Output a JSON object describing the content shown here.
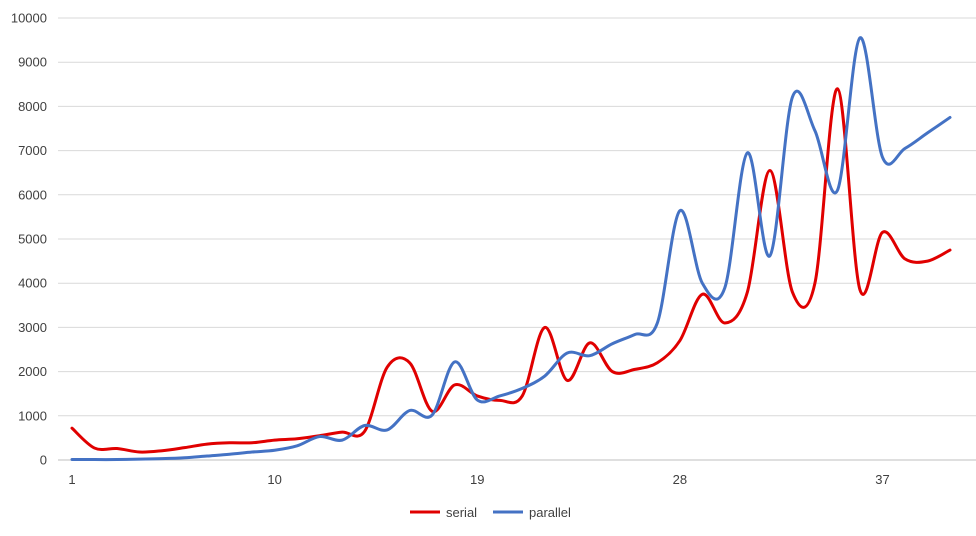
{
  "chart_data": {
    "type": "line",
    "title": "",
    "xlabel": "",
    "ylabel": "",
    "x": [
      1,
      2,
      3,
      4,
      5,
      6,
      7,
      8,
      9,
      10,
      11,
      12,
      13,
      14,
      15,
      16,
      17,
      18,
      19,
      20,
      21,
      22,
      23,
      24,
      25,
      26,
      27,
      28,
      29,
      30,
      31,
      32,
      33,
      34,
      35,
      36,
      37,
      38,
      39,
      40
    ],
    "xticks": [
      1,
      10,
      19,
      28,
      37
    ],
    "xlim": [
      1,
      40
    ],
    "ylim": [
      0,
      10000
    ],
    "yticks": [
      0,
      1000,
      2000,
      3000,
      4000,
      5000,
      6000,
      7000,
      8000,
      9000,
      10000
    ],
    "grid": true,
    "legend_position": "bottom",
    "series": [
      {
        "name": "serial",
        "color": "#e00000",
        "values": [
          720,
          270,
          260,
          180,
          210,
          280,
          360,
          390,
          390,
          450,
          480,
          550,
          630,
          650,
          2100,
          2200,
          1100,
          1700,
          1450,
          1350,
          1450,
          3000,
          1800,
          2650,
          2000,
          2050,
          2200,
          2700,
          3750,
          3100,
          3800,
          6550,
          3800,
          4000,
          8400,
          3850,
          5150,
          4550,
          4500,
          4750
        ]
      },
      {
        "name": "parallel",
        "color": "#4472c4",
        "values": [
          10,
          10,
          10,
          20,
          30,
          50,
          90,
          130,
          180,
          220,
          320,
          530,
          450,
          780,
          680,
          1120,
          1020,
          2220,
          1360,
          1450,
          1620,
          1900,
          2420,
          2360,
          2630,
          2840,
          3100,
          5640,
          4000,
          3900,
          6950,
          4620,
          8210,
          7450,
          6100,
          9550,
          6850,
          7050,
          7400,
          7750
        ]
      }
    ]
  }
}
